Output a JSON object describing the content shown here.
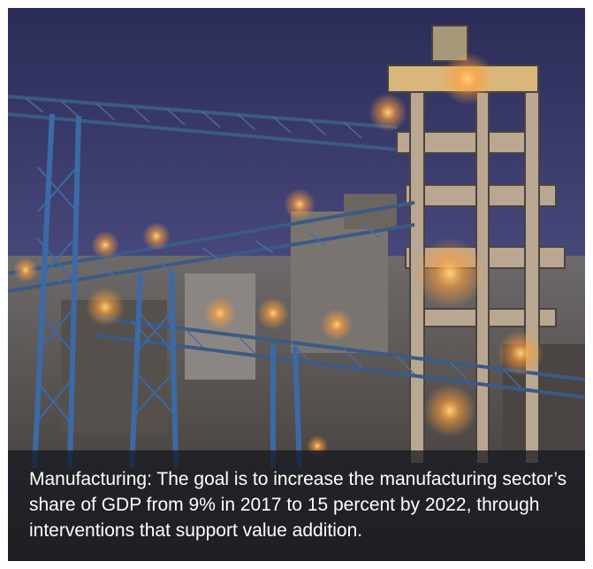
{
  "photo": {
    "subject": "industrial-plant-at-dusk-icon",
    "colors": {
      "sky_top": "#2e2f5c",
      "sky_bottom": "#5a5a8c",
      "steel": "#3b5a86",
      "light": "#ffb347",
      "concrete": "#8a8a8a"
    }
  },
  "caption": {
    "text": "Manufacturing: The goal is to increase the manufacturing sector’s share of GDP from 9% in 2017 to 15 percent by 2022, through interventions that support value addition."
  }
}
